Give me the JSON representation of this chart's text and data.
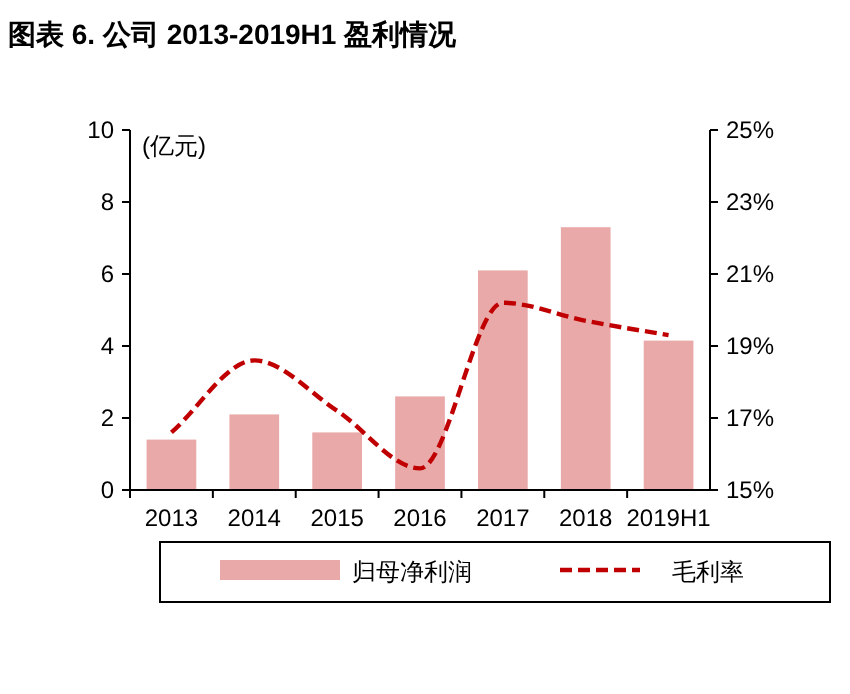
{
  "chart_data": {
    "type": "bar",
    "title": "图表 6. 公司 2013-2019H1 盈利情况",
    "ylabel": "(亿元)",
    "categories": [
      "2013",
      "2014",
      "2015",
      "2016",
      "2017",
      "2018",
      "2019H1"
    ],
    "series": [
      {
        "name": "归母净利润",
        "color": "#eaa9a9",
        "values": [
          1.4,
          2.1,
          1.6,
          2.6,
          6.1,
          7.3,
          4.15
        ]
      },
      {
        "name": "毛利率",
        "type": "line",
        "axis": "y2",
        "color": "#c00000",
        "line_style": "dashed",
        "values": [
          16.6,
          18.6,
          17.2,
          15.6,
          20.2,
          19.7,
          19.3
        ]
      }
    ],
    "ylim": [
      0,
      10
    ],
    "yticks": [
      0,
      2,
      4,
      6,
      8,
      10
    ],
    "y2lim": [
      15,
      25
    ],
    "y2ticks": [
      {
        "value": 15,
        "label": "15%"
      },
      {
        "value": 17,
        "label": "17%"
      },
      {
        "value": 19,
        "label": "19%"
      },
      {
        "value": 21,
        "label": "21%"
      },
      {
        "value": 23,
        "label": "23%"
      },
      {
        "value": 25,
        "label": "25%"
      }
    ],
    "legend": "bottom",
    "grid": false
  }
}
